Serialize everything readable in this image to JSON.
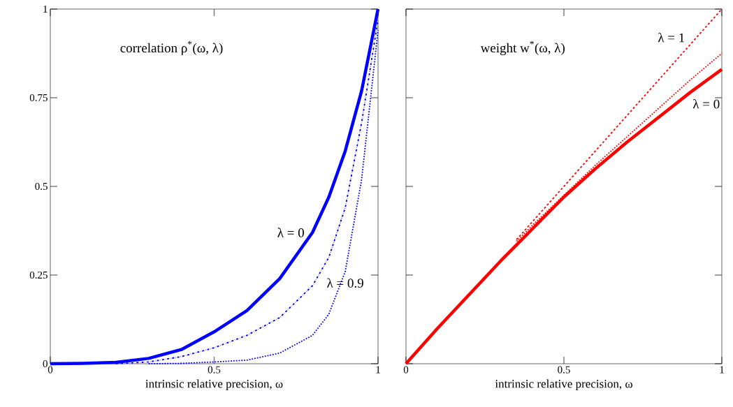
{
  "chart_data": [
    {
      "type": "line",
      "title": "correlation ρ$^{*}$(ω, λ)",
      "xlabel": "intrinsic relative precision, ω",
      "xlim": [
        0,
        1
      ],
      "ylim": [
        0,
        1
      ],
      "xticks": [
        0,
        0.5,
        1
      ],
      "yticks": [
        0,
        0.25,
        0.5,
        0.75,
        1
      ],
      "grid": false,
      "x": [
        0,
        0.1,
        0.2,
        0.3,
        0.4,
        0.5,
        0.6,
        0.7,
        0.8,
        0.85,
        0.9,
        0.95,
        1
      ],
      "series": [
        {
          "name": "λ = 0",
          "color": "#0000ff",
          "line_style": "solid",
          "values": [
            0,
            0.001,
            0.004,
            0.015,
            0.04,
            0.09,
            0.15,
            0.24,
            0.37,
            0.47,
            0.6,
            0.77,
            1
          ]
        },
        {
          "color": "#0000ff",
          "line_style": "dashdot",
          "values": [
            null,
            null,
            0,
            0.005,
            0.02,
            0.045,
            0.08,
            0.13,
            0.22,
            0.3,
            0.44,
            0.68,
            0.97
          ]
        },
        {
          "name": "λ = 0.9",
          "color": "#0000ff",
          "line_style": "dotted",
          "values": [
            null,
            null,
            null,
            0,
            0.001,
            0.005,
            0.01,
            0.03,
            0.08,
            0.14,
            0.26,
            0.52,
            0.94
          ]
        }
      ]
    },
    {
      "type": "line",
      "title": "weight w$^{*}$(ω, λ)",
      "xlabel": "intrinsic relative precision, ω",
      "xlim": [
        0,
        1
      ],
      "ylim": [
        0,
        1
      ],
      "xticks": [
        0,
        0.5,
        1
      ],
      "yticks": [
        0,
        0.25,
        0.5,
        0.75,
        1
      ],
      "tick_labels": "x",
      "grid": false,
      "x": [
        0,
        0.1,
        0.2,
        0.3,
        0.35,
        0.4,
        0.5,
        0.6,
        0.7,
        0.8,
        0.9,
        1
      ],
      "series": [
        {
          "name": "λ = 0",
          "color": "#ff0000",
          "line_style": "solid",
          "values": [
            0,
            0.1,
            0.195,
            0.29,
            0.335,
            0.38,
            0.47,
            0.55,
            0.625,
            0.695,
            0.765,
            0.83
          ]
        },
        {
          "color": "#ff0000",
          "line_style": "dotted",
          "values": [
            null,
            null,
            null,
            null,
            0.345,
            0.39,
            0.475,
            0.56,
            0.64,
            0.72,
            0.8,
            0.875
          ]
        },
        {
          "name": "λ = 1",
          "color": "#ff0000",
          "line_style": "dashed",
          "values": [
            null,
            null,
            null,
            null,
            0.35,
            0.4,
            0.5,
            0.6,
            0.7,
            0.8,
            0.9,
            1
          ]
        }
      ]
    }
  ]
}
